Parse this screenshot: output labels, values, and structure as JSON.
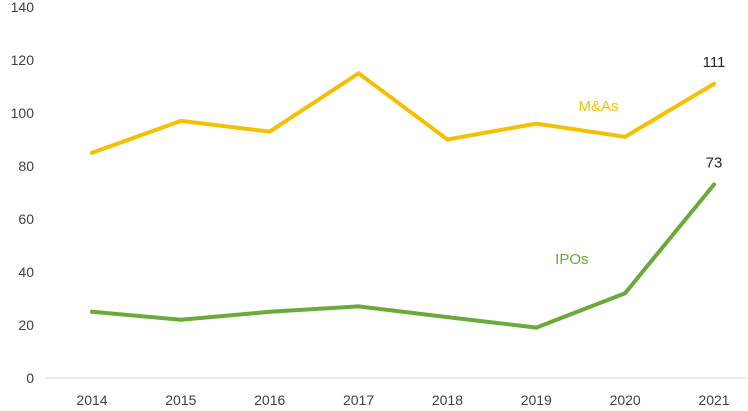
{
  "chart_data": {
    "type": "line",
    "x": [
      "2014",
      "2015",
      "2016",
      "2017",
      "2018",
      "2019",
      "2020",
      "2021"
    ],
    "series": [
      {
        "name": "M&As",
        "color": "#f5c000",
        "values": [
          85,
          97,
          93,
          115,
          90,
          96,
          91,
          111
        ],
        "end_label": "111"
      },
      {
        "name": "IPOs",
        "color": "#6aaa3a",
        "values": [
          25,
          22,
          25,
          27,
          23,
          19,
          32,
          73
        ],
        "end_label": "73"
      }
    ],
    "y_ticks": [
      "0",
      "20",
      "40",
      "60",
      "80",
      "100",
      "120",
      "140"
    ],
    "ylim": [
      0,
      140
    ],
    "title": "",
    "xlabel": "",
    "ylabel": "",
    "grid": false,
    "axis_color": "#d9d9d9"
  }
}
